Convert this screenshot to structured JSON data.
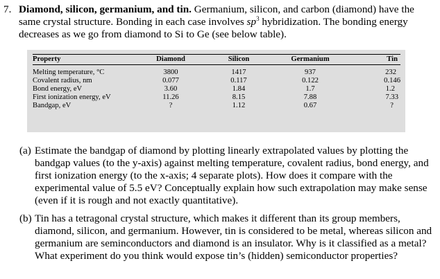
{
  "question": {
    "number": "7.",
    "title": "Diamond, silicon, germanium, and tin.",
    "body_before_sup": " Germanium, silicon, and carbon (diamond) have the same crystal structure. Bonding in each case involves ",
    "sp_base": "sp",
    "sp_sup": "3",
    "body_after_sup": " hybridization. The bonding energy decreases as we go from diamond to Si to Ge (see below table)."
  },
  "table": {
    "headers": [
      "Property",
      "Diamond",
      "Silicon",
      "Germanium",
      "Tin"
    ],
    "rows": [
      {
        "property": "Melting temperature, °C",
        "values": [
          "3800",
          "1417",
          "937",
          "232"
        ]
      },
      {
        "property": "Covalent radius, nm",
        "values": [
          "0.077",
          "0.117",
          "0.122",
          "0.146"
        ]
      },
      {
        "property": "Bond energy, eV",
        "values": [
          "3.60",
          "1.84",
          "1.7",
          "1.2"
        ]
      },
      {
        "property": "First ionization energy, eV",
        "values": [
          "11.26",
          "8.15",
          "7.88",
          "7.33"
        ]
      },
      {
        "property": "Bandgap, eV",
        "values": [
          "?",
          "1.12",
          "0.67",
          "?"
        ]
      }
    ]
  },
  "parts": [
    {
      "label": "(a)",
      "text": "Estimate the bandgap of diamond by plotting linearly extrapolated values by plotting the bandgap values (to the y-axis) against melting temperature, covalent radius, bond energy, and first ionization energy (to the x-axis; 4 separate plots). How does it compare with the experimental value of 5.5 eV? Conceptually explain how such extrapolation may make sense (even if it is rough and not exactly quantitative)."
    },
    {
      "label": "(b)",
      "text": "Tin has a tetragonal crystal structure, which makes it different than its group members, diamond, silicon, and germanium. However, tin is considered to be metal, whereas silicon and germanium are seminconductors and diamond is an insulator. Why is it classified as a metal? What experiment do you think would expose tin’s (hidden) semiconductor properties?"
    }
  ]
}
